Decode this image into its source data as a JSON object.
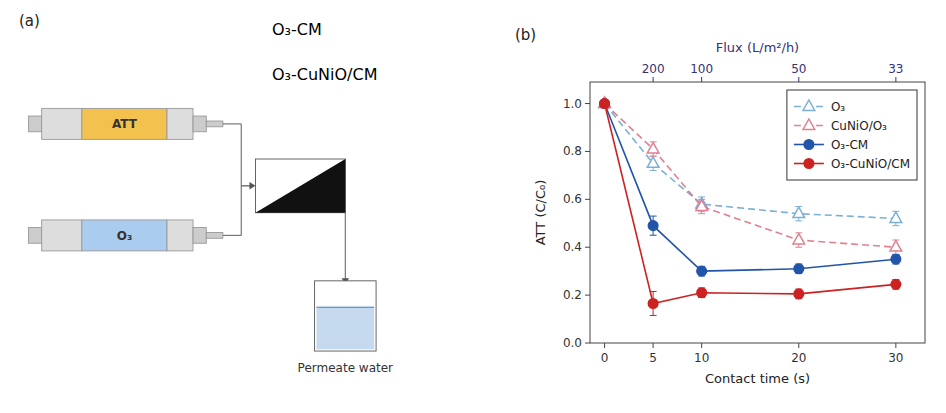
{
  "chart_data": [
    {
      "type": "diagram",
      "annotations": [
        "(a)",
        "ATT",
        "O₃",
        "Permeate water",
        "O₃-CM",
        "O₃-CuNiO/CM"
      ]
    },
    {
      "type": "line",
      "annotations": [
        "(b)"
      ],
      "x": [
        0,
        5,
        10,
        20,
        30
      ],
      "xlabel": "Contact time (s)",
      "ylabel": "ATT (C/C₀)",
      "x2label": "Flux (L/m²/h)",
      "xlim": [
        -1.5,
        33
      ],
      "ylim": [
        0.0,
        1.09
      ],
      "xticks": [
        0,
        5,
        10,
        20,
        30
      ],
      "yticks": [
        {
          "value": 0.0,
          "label": "0.0"
        },
        0.2,
        0.4,
        0.6,
        0.8,
        {
          "value": 1.0,
          "label": "1.0"
        }
      ],
      "x2ticks": [
        {
          "value": 5,
          "label": "200"
        },
        {
          "value": 10,
          "label": "100"
        },
        {
          "value": 20,
          "label": "50"
        },
        {
          "value": 30,
          "label": "33"
        }
      ],
      "grid": false,
      "legend": "upper right",
      "series": [
        {
          "name": "O₃",
          "color": "#7BAFD4",
          "line_style": "dashed",
          "marker": "triangle",
          "values": [
            1.0,
            0.75,
            0.58,
            0.54,
            0.52
          ],
          "yerr": [
            0.0,
            0.03,
            0.03,
            0.03,
            0.03
          ]
        },
        {
          "name": "CuNiO/O₃",
          "color": "#E08090",
          "line_style": "dashed",
          "marker": "triangle",
          "values": [
            1.0,
            0.81,
            0.57,
            0.43,
            0.4
          ],
          "yerr": [
            0.0,
            0.03,
            0.03,
            0.03,
            0.03
          ]
        },
        {
          "name": "O₃-CM",
          "color": "#2255AA",
          "line_style": "solid",
          "marker": "circle",
          "values": [
            1.0,
            0.49,
            0.3,
            0.31,
            0.35
          ],
          "yerr": [
            0.0,
            0.04,
            0.02,
            0.02,
            0.02
          ]
        },
        {
          "name": "O₃-CuNiO/CM",
          "color": "#CC2222",
          "line_style": "solid",
          "marker": "circle",
          "values": [
            1.0,
            0.165,
            0.21,
            0.205,
            0.245
          ],
          "yerr": [
            0.0,
            0.05,
            0.02,
            0.02,
            0.02
          ]
        }
      ]
    }
  ]
}
